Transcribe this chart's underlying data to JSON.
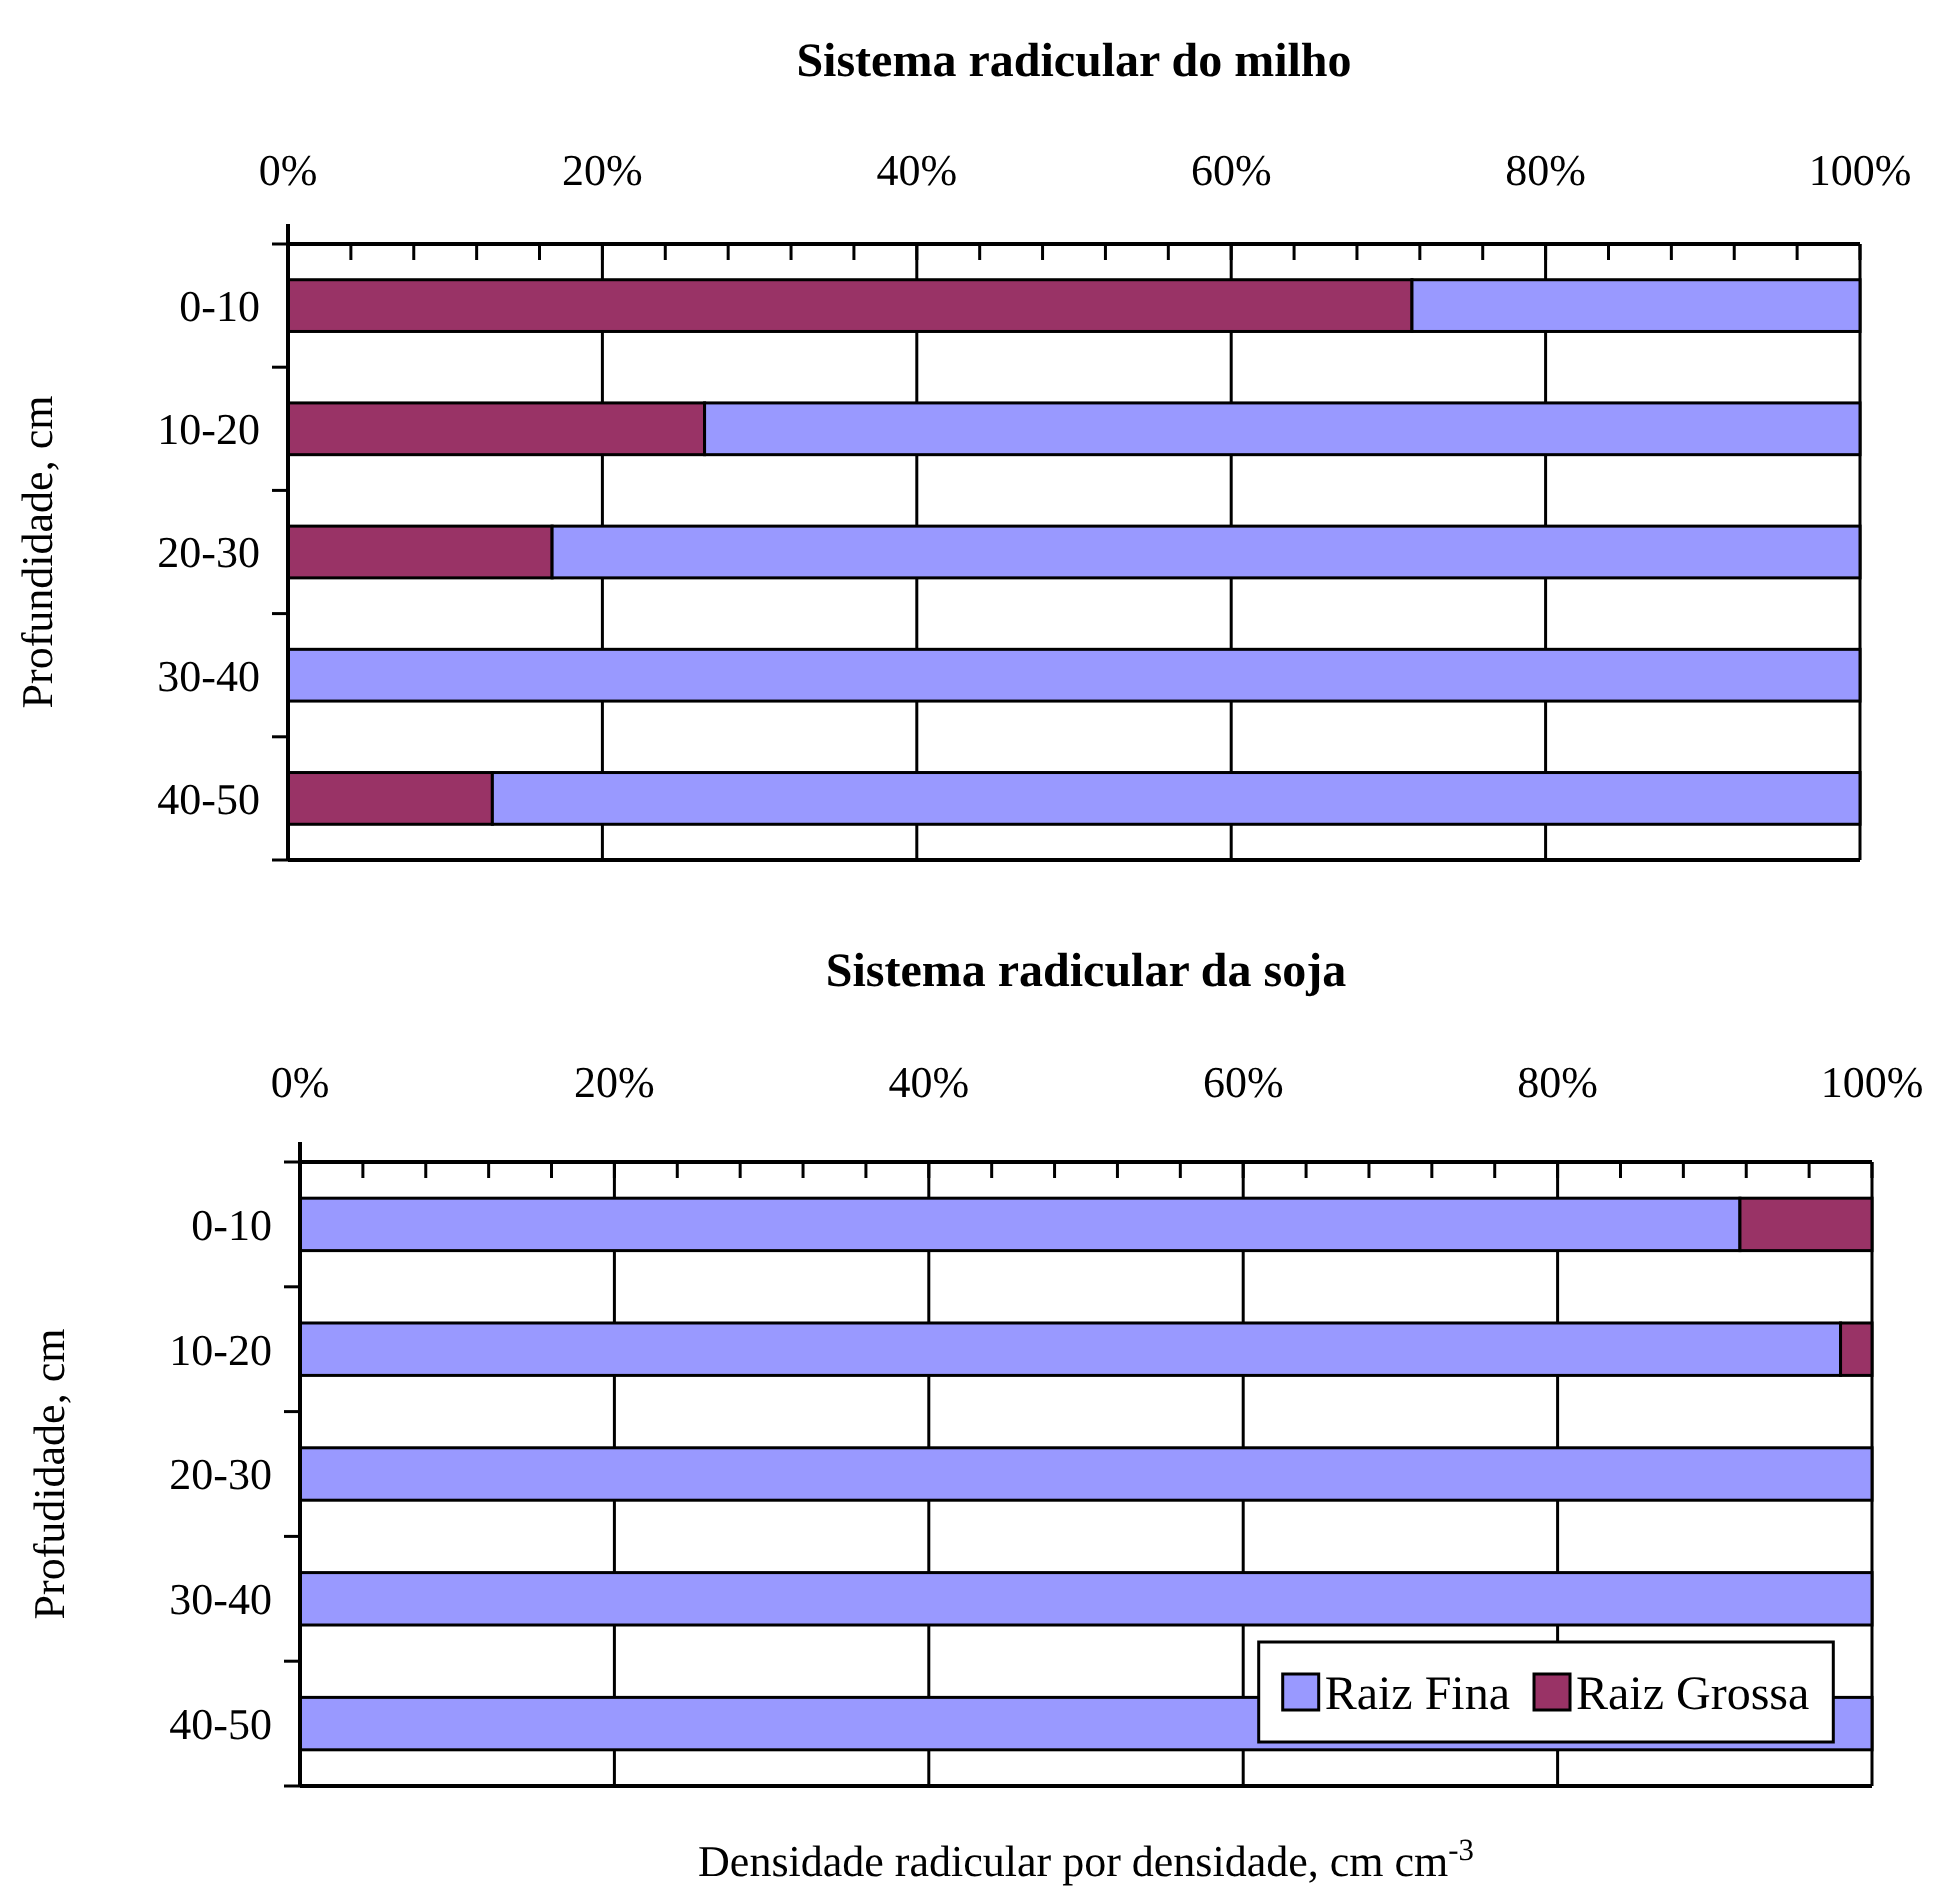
{
  "chart_data": [
    {
      "type": "bar",
      "orientation": "horizontal",
      "stacked": true,
      "title": "Sistema radicular do milho",
      "ylabel": "Profundidade, cm",
      "categories": [
        "0-10",
        "10-20",
        "20-30",
        "30-40",
        "40-50"
      ],
      "series": [
        {
          "color": "#993366",
          "values": [
            71.5,
            26.5,
            16.8,
            0,
            13
          ]
        },
        {
          "color": "#9999ff",
          "values": [
            28.5,
            73.5,
            83.2,
            100,
            87
          ]
        }
      ],
      "xlim": [
        0,
        100
      ],
      "xticks": [
        {
          "value": 0,
          "label": "0%"
        },
        {
          "value": 4,
          "label": null
        },
        {
          "value": 8,
          "label": null
        },
        {
          "value": 12,
          "label": null
        },
        {
          "value": 16,
          "label": null
        },
        {
          "value": 20,
          "label": "20%"
        },
        {
          "value": 24,
          "label": null
        },
        {
          "value": 28,
          "label": null
        },
        {
          "value": 32,
          "label": null
        },
        {
          "value": 36,
          "label": null
        },
        {
          "value": 40,
          "label": "40%"
        },
        {
          "value": 44,
          "label": null
        },
        {
          "value": 48,
          "label": null
        },
        {
          "value": 52,
          "label": null
        },
        {
          "value": 56,
          "label": null
        },
        {
          "value": 60,
          "label": "60%"
        },
        {
          "value": 64,
          "label": null
        },
        {
          "value": 68,
          "label": null
        },
        {
          "value": 72,
          "label": null
        },
        {
          "value": 76,
          "label": null
        },
        {
          "value": 80,
          "label": "80%"
        },
        {
          "value": 84,
          "label": null
        },
        {
          "value": 88,
          "label": null
        },
        {
          "value": 92,
          "label": null
        },
        {
          "value": 96,
          "label": null
        },
        {
          "value": 100,
          "label": "100%"
        }
      ],
      "grid": "x",
      "legend": false
    },
    {
      "type": "bar",
      "orientation": "horizontal",
      "stacked": true,
      "title": "Sistema radicular da soja",
      "ylabel": "Profudidade, cm",
      "xlabel": "Densidade radicular por densidade, cm cm$^{-3}$",
      "categories": [
        "0-10",
        "10-20",
        "20-30",
        "30-40",
        "40-50"
      ],
      "series": [
        {
          "name": "Raiz Fina",
          "color": "#9999ff",
          "values": [
            91.6,
            98,
            100,
            100,
            100
          ]
        },
        {
          "name": "Raiz Grossa",
          "color": "#993366",
          "values": [
            8.4,
            2,
            0,
            0,
            0
          ]
        }
      ],
      "xlim": [
        0,
        100
      ],
      "xticks": [
        {
          "value": 0,
          "label": "0%"
        },
        {
          "value": 4,
          "label": null
        },
        {
          "value": 8,
          "label": null
        },
        {
          "value": 12,
          "label": null
        },
        {
          "value": 16,
          "label": null
        },
        {
          "value": 20,
          "label": "20%"
        },
        {
          "value": 24,
          "label": null
        },
        {
          "value": 28,
          "label": null
        },
        {
          "value": 32,
          "label": null
        },
        {
          "value": 36,
          "label": null
        },
        {
          "value": 40,
          "label": "40%"
        },
        {
          "value": 44,
          "label": null
        },
        {
          "value": 48,
          "label": null
        },
        {
          "value": 52,
          "label": null
        },
        {
          "value": 56,
          "label": null
        },
        {
          "value": 60,
          "label": "60%"
        },
        {
          "value": 64,
          "label": null
        },
        {
          "value": 68,
          "label": null
        },
        {
          "value": 72,
          "label": null
        },
        {
          "value": 76,
          "label": null
        },
        {
          "value": 80,
          "label": "80%"
        },
        {
          "value": 84,
          "label": null
        },
        {
          "value": 88,
          "label": null
        },
        {
          "value": 92,
          "label": null
        },
        {
          "value": 96,
          "label": null
        },
        {
          "value": 100,
          "label": "100%"
        }
      ],
      "grid": "x",
      "legend": "bottom right"
    }
  ]
}
